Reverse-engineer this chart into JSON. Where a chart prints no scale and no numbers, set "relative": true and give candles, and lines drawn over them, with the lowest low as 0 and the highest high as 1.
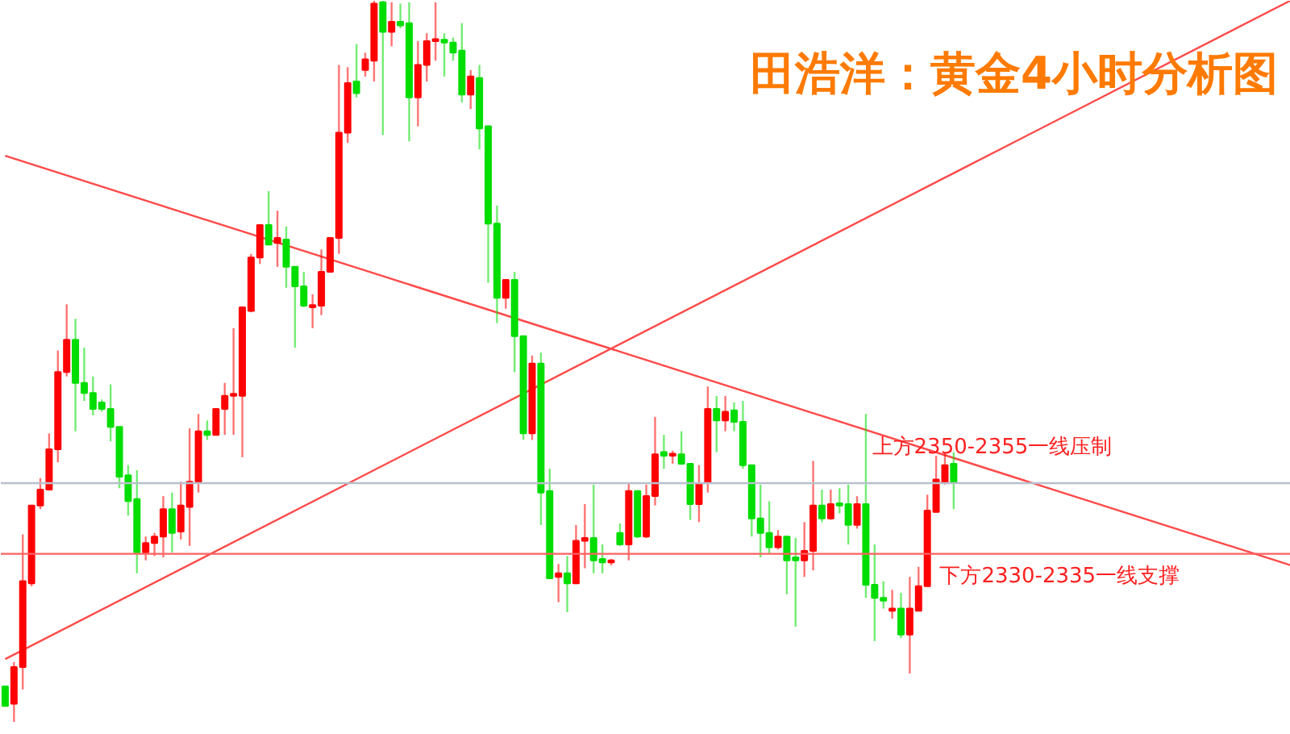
{
  "chart_data": {
    "type": "candlestick",
    "title": "田浩洋：黄金4小时分析图",
    "relative": true,
    "tick_labels": false,
    "categories": [
      null,
      null,
      null,
      null,
      null,
      null,
      null,
      null,
      null,
      null,
      null,
      null,
      null,
      null,
      null,
      null,
      null,
      null,
      null,
      null,
      null,
      null,
      null,
      null,
      null,
      null,
      null,
      null,
      null,
      null,
      null,
      null,
      null,
      null,
      null,
      null,
      null,
      null,
      null,
      null,
      null,
      null,
      null,
      null,
      null,
      null,
      null,
      null,
      null,
      null,
      null,
      null,
      null,
      null,
      null,
      null,
      null,
      null,
      null,
      null,
      null,
      null,
      null,
      null,
      null,
      null,
      null,
      null,
      null,
      null,
      null,
      null,
      null,
      null,
      null,
      null,
      null,
      null,
      null,
      null,
      null,
      null,
      null,
      null,
      null,
      null,
      null,
      null,
      null,
      null,
      null,
      null,
      null,
      null,
      null,
      null,
      null,
      null,
      null,
      null,
      null,
      null,
      null,
      null,
      null,
      null,
      null,
      null,
      null
    ],
    "colors": [
      "#00dd00",
      "#ff0000",
      "#ff0000",
      "#ff0000",
      "#ff0000",
      "#ff0000",
      "#ff0000",
      "#ff0000",
      "#00dd00",
      "#00dd00",
      "#00dd00",
      "#00dd00",
      "#00dd00",
      "#00dd00",
      "#00dd00",
      "#00dd00",
      "#ff0000",
      "#ff0000",
      "#ff0000",
      "#00dd00",
      "#ff0000",
      "#ff0000",
      "#ff0000",
      "#00dd00",
      "#ff0000",
      "#ff0000",
      "#ff0000",
      "#ff0000",
      "#ff0000",
      "#ff0000",
      "#00dd00",
      "#ff0000",
      "#00dd00",
      "#00dd00",
      "#00dd00",
      "#ff0000",
      "#ff0000",
      "#ff0000",
      "#ff0000",
      "#ff0000",
      "#00dd00",
      "#ff0000",
      "#ff0000",
      "#00dd00",
      "#ff0000",
      "#00dd00",
      "#00dd00",
      "#ff0000",
      "#ff0000",
      "#ff0000",
      "#00dd00",
      "#00dd00",
      "#00dd00",
      "#ff0000",
      "#00dd00",
      "#00dd00",
      "#00dd00",
      "#ff0000",
      "#00dd00",
      "#00dd00",
      "#ff0000",
      "#00dd00",
      "#00dd00",
      "#ff0000",
      "#00dd00",
      "#ff0000",
      "#ff0000",
      "#00dd00",
      "#00dd00",
      "#ff0000",
      "#00dd00",
      "#ff0000",
      "#00dd00",
      "#ff0000",
      "#ff0000",
      "#00dd00",
      "#ff0000",
      "#00dd00",
      "#00dd00",
      "#ff0000",
      "#ff0000",
      "#00dd00",
      "#ff0000",
      "#00dd00",
      "#00dd00",
      "#00dd00",
      "#00dd00",
      "#00dd00",
      "#ff0000",
      "#00dd00",
      "#00dd00",
      "#ff0000",
      "#ff0000",
      "#00dd00",
      "#ff0000",
      "#00dd00",
      "#00dd00",
      "#ff0000",
      "#00dd00",
      "#00dd00",
      "#00dd00",
      "#ff0000",
      "#00dd00",
      "#ff0000",
      "#ff0000",
      "#ff0000",
      "#ff0000",
      "#ff0000",
      "#00dd00"
    ],
    "ohlc": [
      [
        0.049,
        0.049,
        0.022,
        0.022
      ],
      [
        0.025,
        0.083,
        0.0,
        0.076
      ],
      [
        0.076,
        0.26,
        0.045,
        0.195
      ],
      [
        0.192,
        0.3,
        0.188,
        0.3
      ],
      [
        0.3,
        0.338,
        0.295,
        0.322
      ],
      [
        0.322,
        0.4,
        0.322,
        0.378
      ],
      [
        0.378,
        0.515,
        0.36,
        0.485
      ],
      [
        0.485,
        0.579,
        0.479,
        0.53
      ],
      [
        0.53,
        0.559,
        0.403,
        0.47
      ],
      [
        0.47,
        0.519,
        0.445,
        0.456
      ],
      [
        0.456,
        0.479,
        0.425,
        0.434
      ],
      [
        0.443,
        0.447,
        0.43,
        0.434
      ],
      [
        0.434,
        0.468,
        0.389,
        0.409
      ],
      [
        0.409,
        0.409,
        0.324,
        0.34
      ],
      [
        0.342,
        0.356,
        0.286,
        0.306
      ],
      [
        0.309,
        0.349,
        0.206,
        0.235
      ],
      [
        0.235,
        0.257,
        0.224,
        0.248
      ],
      [
        0.248,
        0.262,
        0.23,
        0.257
      ],
      [
        0.257,
        0.313,
        0.228,
        0.295
      ],
      [
        0.295,
        0.318,
        0.235,
        0.262
      ],
      [
        0.264,
        0.333,
        0.253,
        0.3
      ],
      [
        0.298,
        0.407,
        0.244,
        0.333
      ],
      [
        0.333,
        0.427,
        0.318,
        0.403
      ],
      [
        0.403,
        0.418,
        0.391,
        0.398
      ],
      [
        0.398,
        0.434,
        0.398,
        0.434
      ],
      [
        0.434,
        0.47,
        0.398,
        0.452
      ],
      [
        0.452,
        0.546,
        0.398,
        0.454
      ],
      [
        0.452,
        0.575,
        0.367,
        0.575
      ],
      [
        0.57,
        0.649,
        0.568,
        0.644
      ],
      [
        0.644,
        0.689,
        0.635,
        0.689
      ],
      [
        0.689,
        0.736,
        0.662,
        0.662
      ],
      [
        0.664,
        0.709,
        0.631,
        0.671
      ],
      [
        0.669,
        0.687,
        0.602,
        0.631
      ],
      [
        0.631,
        0.631,
        0.519,
        0.604
      ],
      [
        0.604,
        0.624,
        0.575,
        0.577
      ],
      [
        0.575,
        0.593,
        0.546,
        0.577
      ],
      [
        0.577,
        0.655,
        0.564,
        0.624
      ],
      [
        0.624,
        0.671,
        0.624,
        0.671
      ],
      [
        0.671,
        0.911,
        0.649,
        0.817
      ],
      [
        0.817,
        0.908,
        0.803,
        0.886
      ],
      [
        0.888,
        0.94,
        0.866,
        0.872
      ],
      [
        0.904,
        0.928,
        0.895,
        0.919
      ],
      [
        0.917,
        1.0,
        0.888,
        0.996
      ],
      [
        0.998,
        1.0,
        0.814,
        0.957
      ],
      [
        0.957,
        0.998,
        0.937,
        0.971
      ],
      [
        0.971,
        0.996,
        0.962,
        0.966
      ],
      [
        0.969,
        0.998,
        0.805,
        0.866
      ],
      [
        0.866,
        0.944,
        0.826,
        0.911
      ],
      [
        0.911,
        0.955,
        0.888,
        0.944
      ],
      [
        0.944,
        0.998,
        0.917,
        0.946
      ],
      [
        0.946,
        0.955,
        0.895,
        0.942
      ],
      [
        0.942,
        0.949,
        0.917,
        0.928
      ],
      [
        0.931,
        0.969,
        0.859,
        0.87
      ],
      [
        0.87,
        0.904,
        0.85,
        0.895
      ],
      [
        0.893,
        0.911,
        0.794,
        0.823
      ],
      [
        0.826,
        0.826,
        0.609,
        0.691
      ],
      [
        0.691,
        0.716,
        0.553,
        0.588
      ],
      [
        0.588,
        0.613,
        0.573,
        0.613
      ],
      [
        0.613,
        0.624,
        0.485,
        0.535
      ],
      [
        0.535,
        0.535,
        0.391,
        0.4
      ],
      [
        0.4,
        0.508,
        0.391,
        0.497
      ],
      [
        0.497,
        0.512,
        0.273,
        0.318
      ],
      [
        0.32,
        0.351,
        0.199,
        0.199
      ],
      [
        0.201,
        0.219,
        0.166,
        0.206
      ],
      [
        0.206,
        0.23,
        0.152,
        0.192
      ],
      [
        0.192,
        0.273,
        0.192,
        0.251
      ],
      [
        0.251,
        0.302,
        0.213,
        0.255
      ],
      [
        0.255,
        0.329,
        0.206,
        0.224
      ],
      [
        0.226,
        0.246,
        0.206,
        0.221
      ],
      [
        0.221,
        0.226,
        0.217,
        0.224
      ],
      [
        0.262,
        0.275,
        0.244,
        0.246
      ],
      [
        0.246,
        0.331,
        0.224,
        0.32
      ],
      [
        0.32,
        0.32,
        0.255,
        0.257
      ],
      [
        0.257,
        0.329,
        0.255,
        0.313
      ],
      [
        0.313,
        0.423,
        0.3,
        0.371
      ],
      [
        0.374,
        0.398,
        0.351,
        0.369
      ],
      [
        0.369,
        0.376,
        0.358,
        0.371
      ],
      [
        0.371,
        0.403,
        0.358,
        0.358
      ],
      [
        0.358,
        0.358,
        0.28,
        0.302
      ],
      [
        0.302,
        0.356,
        0.277,
        0.331
      ],
      [
        0.331,
        0.465,
        0.318,
        0.434
      ],
      [
        0.434,
        0.452,
        0.374,
        0.418
      ],
      [
        0.418,
        0.452,
        0.403,
        0.43
      ],
      [
        0.432,
        0.443,
        0.403,
        0.416
      ],
      [
        0.416,
        0.445,
        0.351,
        0.356
      ],
      [
        0.356,
        0.356,
        0.257,
        0.282
      ],
      [
        0.282,
        0.329,
        0.228,
        0.262
      ],
      [
        0.262,
        0.306,
        0.233,
        0.242
      ],
      [
        0.242,
        0.266,
        0.239,
        0.257
      ],
      [
        0.257,
        0.257,
        0.177,
        0.224
      ],
      [
        0.228,
        0.255,
        0.132,
        0.224
      ],
      [
        0.224,
        0.277,
        0.201,
        0.237
      ],
      [
        0.237,
        0.362,
        0.21,
        0.3
      ],
      [
        0.3,
        0.322,
        0.277,
        0.282
      ],
      [
        0.282,
        0.322,
        0.28,
        0.302
      ],
      [
        0.302,
        0.324,
        0.289,
        0.3
      ],
      [
        0.302,
        0.329,
        0.246,
        0.273
      ],
      [
        0.273,
        0.313,
        0.268,
        0.302
      ],
      [
        0.302,
        0.427,
        0.172,
        0.19
      ],
      [
        0.19,
        0.246,
        0.112,
        0.172
      ],
      [
        0.172,
        0.195,
        0.157,
        0.168
      ],
      [
        0.154,
        0.183,
        0.143,
        0.157
      ],
      [
        0.157,
        0.179,
        0.116,
        0.121
      ],
      [
        0.121,
        0.201,
        0.067,
        0.157
      ],
      [
        0.154,
        0.215,
        0.154,
        0.188
      ],
      [
        0.188,
        0.315,
        0.188,
        0.293
      ],
      [
        0.291,
        0.369,
        0.291,
        0.336
      ],
      [
        0.331,
        0.374,
        0.329,
        0.356
      ],
      [
        0.358,
        0.374,
        0.295,
        0.331
      ]
    ],
    "series": [
      {
        "type": "line",
        "color": "#ff4a4a",
        "values": [
          0.785,
          null,
          null,
          null,
          null,
          null,
          null,
          null,
          null,
          null,
          null,
          null,
          null,
          null,
          null,
          null,
          null,
          null,
          null,
          null,
          null,
          null,
          null,
          null,
          null,
          null,
          null,
          null,
          null,
          null,
          null,
          null,
          null,
          null,
          null,
          null,
          null,
          null,
          null,
          null,
          null,
          null,
          null,
          null,
          null,
          null,
          null,
          null,
          null,
          null,
          null,
          null,
          null,
          null,
          null,
          null,
          null,
          null,
          null,
          null,
          null,
          null,
          null,
          null,
          null,
          null,
          null,
          null,
          null,
          null,
          null,
          null,
          null,
          null,
          null,
          null,
          null,
          null,
          null,
          null,
          null,
          null,
          null,
          null,
          null,
          null,
          null,
          null,
          null,
          null,
          null,
          null,
          null,
          null,
          null,
          null,
          null,
          null,
          null,
          null,
          null,
          null,
          null,
          null,
          null,
          null,
          null,
          null,
          0.366
        ]
      },
      {
        "type": "line",
        "color": "#ff4a4a",
        "values": [
          0.087,
          null,
          null,
          null,
          null,
          null,
          null,
          null,
          null,
          null,
          null,
          null,
          null,
          null,
          null,
          null,
          null,
          null,
          null,
          null,
          null,
          null,
          null,
          null,
          null,
          null,
          null,
          null,
          null,
          null,
          null,
          null,
          null,
          null,
          null,
          null,
          null,
          null,
          null,
          null,
          null,
          null,
          null,
          null,
          null,
          null,
          null,
          null,
          null,
          null,
          null,
          null,
          null,
          null,
          null,
          null,
          null,
          null,
          null,
          null,
          null,
          null,
          null,
          null,
          null,
          null,
          null,
          null,
          null,
          null,
          null,
          null,
          null,
          null,
          null,
          null,
          null,
          null,
          null,
          null,
          null,
          null,
          null,
          null,
          null,
          null,
          null,
          null,
          null,
          null,
          null,
          null,
          null,
          null,
          null,
          null,
          null,
          null,
          null,
          null,
          null,
          null,
          null,
          null,
          null,
          null,
          null,
          null,
          0.761
        ]
      }
    ],
    "ref_lines": [
      {
        "axis": "y",
        "value": 0.331,
        "color": "#b8c0cc"
      },
      {
        "axis": "y",
        "value": 0.233,
        "color": "#ff6060"
      }
    ],
    "annotations": [
      "上方2350-2355一线压制",
      "下方2330-2335一线支撑"
    ]
  }
}
